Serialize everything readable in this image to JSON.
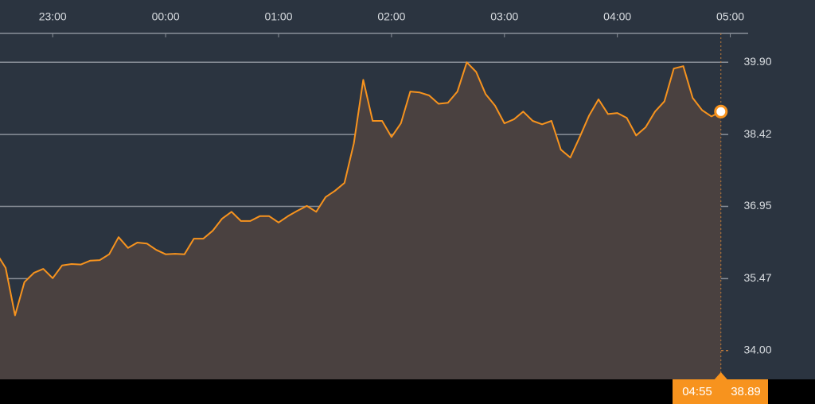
{
  "chart_data": {
    "type": "line",
    "x": [
      "22:30",
      "22:35",
      "22:40",
      "22:45",
      "22:50",
      "22:55",
      "23:00",
      "23:05",
      "23:10",
      "23:15",
      "23:20",
      "23:25",
      "23:30",
      "23:35",
      "23:40",
      "23:45",
      "23:50",
      "23:55",
      "00:00",
      "00:05",
      "00:10",
      "00:15",
      "00:20",
      "00:25",
      "00:30",
      "00:35",
      "00:40",
      "00:45",
      "00:50",
      "00:55",
      "01:00",
      "01:05",
      "01:10",
      "01:15",
      "01:20",
      "01:25",
      "01:30",
      "01:35",
      "01:40",
      "01:45",
      "01:50",
      "01:55",
      "02:00",
      "02:05",
      "02:10",
      "02:15",
      "02:20",
      "02:25",
      "02:30",
      "02:35",
      "02:40",
      "02:45",
      "02:50",
      "02:55",
      "03:00",
      "03:05",
      "03:10",
      "03:15",
      "03:20",
      "03:25",
      "03:30",
      "03:35",
      "03:40",
      "03:45",
      "03:50",
      "03:55",
      "04:00",
      "04:05",
      "04:10",
      "04:15",
      "04:20",
      "04:25",
      "04:30",
      "04:35",
      "04:40",
      "04:45",
      "04:50",
      "04:55"
    ],
    "series": [
      {
        "color": "#f7931e",
        "values": [
          36.0,
          35.69,
          34.72,
          35.4,
          35.59,
          35.67,
          35.48,
          35.74,
          35.77,
          35.76,
          35.84,
          35.85,
          35.97,
          36.32,
          36.1,
          36.21,
          36.19,
          36.06,
          35.97,
          35.98,
          35.97,
          36.29,
          36.29,
          36.45,
          36.7,
          36.84,
          36.65,
          36.65,
          36.75,
          36.75,
          36.62,
          36.75,
          36.86,
          36.96,
          36.84,
          37.14,
          37.27,
          37.43,
          38.24,
          39.54,
          38.7,
          38.7,
          38.37,
          38.65,
          39.3,
          39.28,
          39.22,
          39.05,
          39.07,
          39.3,
          39.9,
          39.7,
          39.25,
          39.01,
          38.65,
          38.73,
          38.89,
          38.7,
          38.63,
          38.7,
          38.11,
          37.95,
          38.37,
          38.81,
          39.14,
          38.84,
          38.86,
          38.76,
          38.4,
          38.57,
          38.89,
          39.1,
          39.77,
          39.82,
          39.17,
          38.92,
          38.79,
          38.89
        ]
      }
    ],
    "xlim": [
      "22:32",
      "05:45"
    ],
    "xticks": [
      "23:00",
      "00:00",
      "01:00",
      "02:00",
      "03:00",
      "04:00",
      "05:00"
    ],
    "ylim": [
      33.41,
      40.49
    ],
    "yticks": [
      {
        "value": 34.0,
        "label": "34.00"
      },
      35.47,
      36.95,
      38.42,
      {
        "value": 39.9,
        "label": "39.90"
      }
    ],
    "grid": true
  }
}
